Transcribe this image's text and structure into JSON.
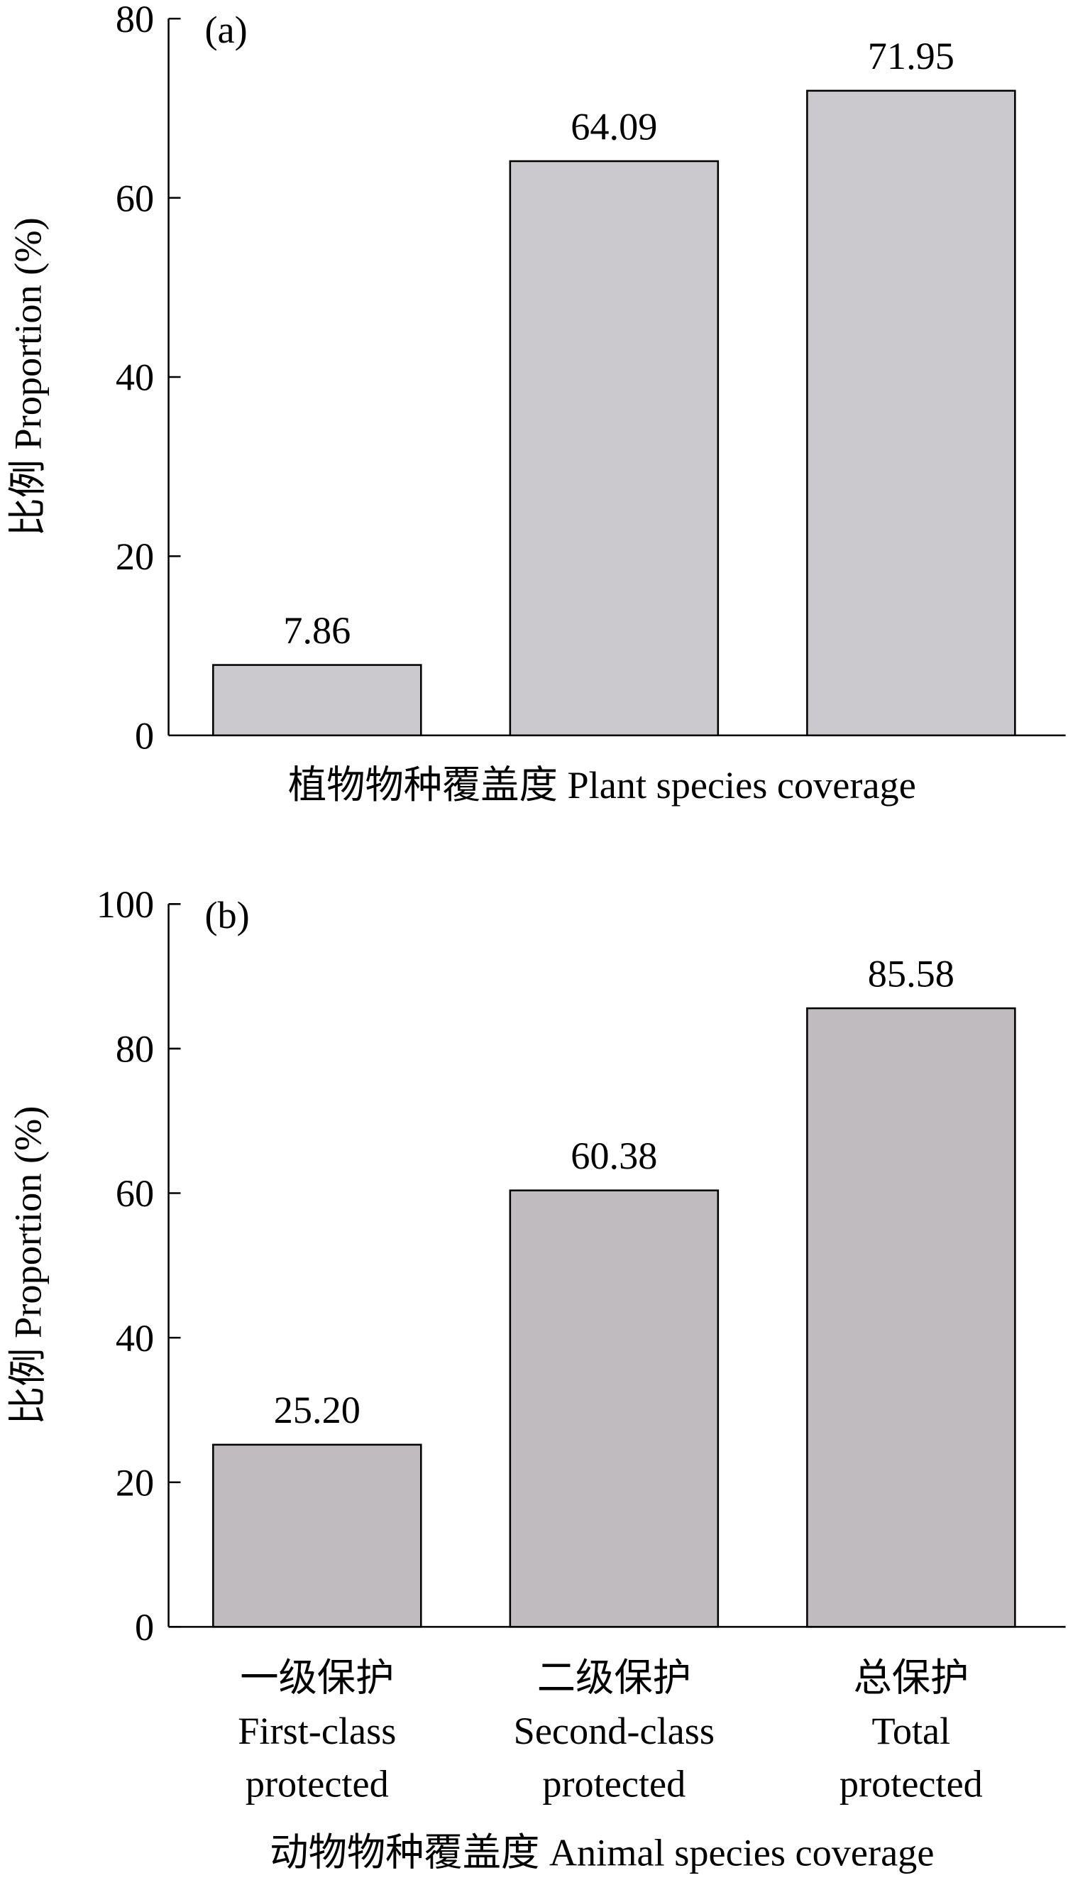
{
  "chart_data": [
    {
      "type": "bar",
      "panel": "(a)",
      "ylabel": "比例 Proportion (%)",
      "xlabel": "植物物种覆盖度 Plant species coverage",
      "categories": [
        null,
        null,
        null
      ],
      "values": [
        7.86,
        64.09,
        71.95
      ],
      "color": "#ccc9ce",
      "ylim": [
        0,
        80
      ],
      "yticks": [
        0,
        20,
        40,
        60,
        80
      ]
    },
    {
      "type": "bar",
      "panel": "(b)",
      "ylabel": "比例 Proportion (%)",
      "xlabel": "动物物种覆盖度 Animal species coverage",
      "categories": [
        [
          "一级保护",
          "First-class",
          "protected"
        ],
        [
          "二级保护",
          "Second-class",
          "protected"
        ],
        [
          "总保护",
          "Total",
          "protected"
        ]
      ],
      "values": [
        25.2,
        60.38,
        85.58
      ],
      "value_labels": [
        "25.20",
        "60.38",
        "85.58"
      ],
      "color": "#c0bbbf",
      "ylim": [
        0,
        100
      ],
      "yticks": [
        0,
        20,
        40,
        60,
        80,
        100
      ]
    }
  ]
}
